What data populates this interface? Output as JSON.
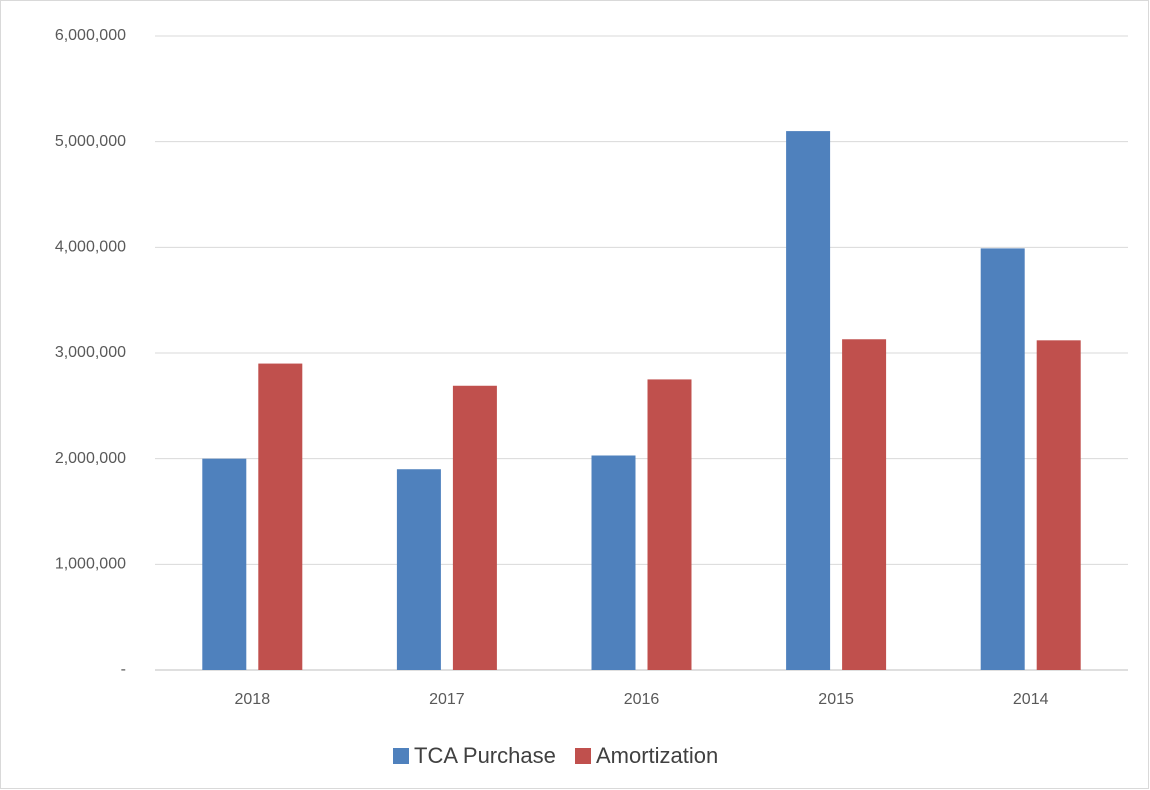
{
  "chart_data": {
    "type": "bar",
    "categories": [
      "2018",
      "2017",
      "2016",
      "2015",
      "2014"
    ],
    "series": [
      {
        "name": "TCA Purchase",
        "color": "#4f81bd",
        "values": [
          2000000,
          1900000,
          2030000,
          5100000,
          3990000
        ]
      },
      {
        "name": "Amortization",
        "color": "#c0504d",
        "values": [
          2900000,
          2690000,
          2750000,
          3130000,
          3120000
        ]
      }
    ],
    "ylim": [
      0,
      6000000
    ],
    "yticks": [
      {
        "value": 0,
        "label": "-"
      },
      {
        "value": 1000000,
        "label": "1,000,000"
      },
      {
        "value": 2000000,
        "label": "2,000,000"
      },
      {
        "value": 3000000,
        "label": "3,000,000"
      },
      {
        "value": 4000000,
        "label": "4,000,000"
      },
      {
        "value": 5000000,
        "label": "5,000,000"
      },
      {
        "value": 6000000,
        "label": "6,000,000"
      }
    ],
    "grid": true,
    "legend": "bottom"
  }
}
